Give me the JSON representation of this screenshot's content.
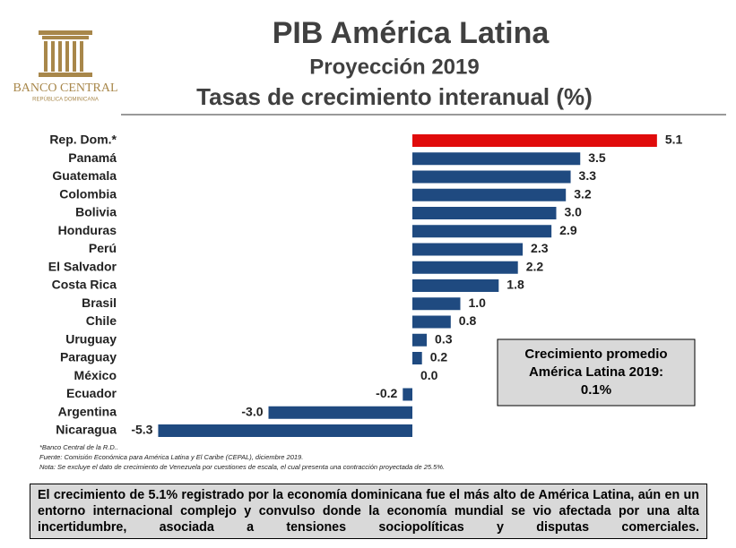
{
  "logo": {
    "name": "BANCO CENTRAL",
    "subtitle": "REPÚBLICA DOMINICANA"
  },
  "chart_data": {
    "type": "bar",
    "orientation": "horizontal",
    "title": "PIB América Latina",
    "subtitle": "Proyección 2019",
    "subtitle2": "Tasas de crecimiento interanual (%)",
    "categories": [
      "Rep. Dom.*",
      "Panamá",
      "Guatemala",
      "Colombia",
      "Bolivia",
      "Honduras",
      "Perú",
      "El Salvador",
      "Costa Rica",
      "Brasil",
      "Chile",
      "Uruguay",
      "Paraguay",
      "México",
      "Ecuador",
      "Argentina",
      "Nicaragua"
    ],
    "values": [
      5.1,
      3.5,
      3.3,
      3.2,
      3.0,
      2.9,
      2.3,
      2.2,
      1.8,
      1.0,
      0.8,
      0.3,
      0.2,
      0.0,
      -0.2,
      -3.0,
      -5.3
    ],
    "value_labels": [
      "5.1",
      "3.5",
      "3.3",
      "3.2",
      "3.0",
      "2.9",
      "2.3",
      "2.2",
      "1.8",
      "1.0",
      "0.8",
      "0.3",
      "0.2",
      "0.0",
      "-0.2",
      "-3.0",
      "-5.3"
    ],
    "colors": [
      "#e00b0b",
      "#1f4a80",
      "#1f4a80",
      "#1f4a80",
      "#1f4a80",
      "#1f4a80",
      "#1f4a80",
      "#1f4a80",
      "#1f4a80",
      "#1f4a80",
      "#1f4a80",
      "#1f4a80",
      "#1f4a80",
      "#1f4a80",
      "#1f4a80",
      "#1f4a80",
      "#1f4a80"
    ],
    "annotation": [
      "Crecimiento promedio",
      "América Latina 2019:",
      "0.1%"
    ],
    "footnotes": [
      "*Banco Central de la R.D..",
      "Fuente: Comisión Económica para América Latina y El Caribe (CEPAL), diciembre 2019.",
      "Nota: Se excluye el dato de crecimiento de Venezuela por cuestiones de escala, el cual presenta una contracción proyectada de 25.5%."
    ]
  },
  "summary": "El crecimiento de 5.1% registrado por la economía dominicana fue el más alto de América Latina, aún en un entorno internacional complejo y convulso donde la economía mundial se vio afectada por una alta incertidumbre, asociada a tensiones sociopolíticas y disputas comerciales."
}
